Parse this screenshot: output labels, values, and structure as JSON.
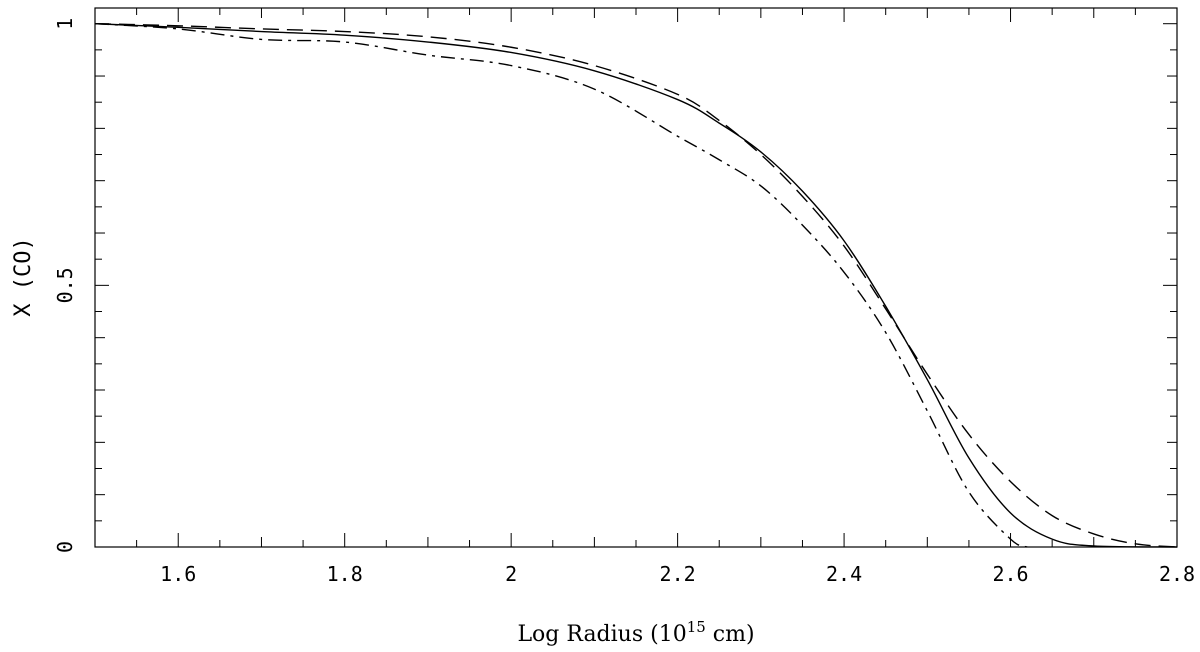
{
  "chart_data": {
    "type": "line",
    "title": "",
    "xlabel": {
      "prefix": "Log Radius (10",
      "superscript": "15",
      "suffix": " cm)"
    },
    "ylabel": "X (CO)",
    "xlim": [
      1.5,
      2.8
    ],
    "ylim": [
      0,
      1.03
    ],
    "x_ticks": [
      {
        "value": 1.6,
        "label": "1.6"
      },
      {
        "value": 1.8,
        "label": "1.8"
      },
      {
        "value": 2.0,
        "label": "2"
      },
      {
        "value": 2.2,
        "label": "2.2"
      },
      {
        "value": 2.4,
        "label": "2.4"
      },
      {
        "value": 2.6,
        "label": "2.6"
      },
      {
        "value": 2.8,
        "label": "2.8"
      }
    ],
    "y_ticks": [
      {
        "value": 0,
        "label": "0"
      },
      {
        "value": 0.5,
        "label": "0.5"
      },
      {
        "value": 1,
        "label": "1"
      }
    ],
    "grid": false,
    "legend": "none",
    "series": [
      {
        "style": "solid",
        "points": [
          [
            1.5,
            1.0
          ],
          [
            1.6,
            0.993
          ],
          [
            1.7,
            0.985
          ],
          [
            1.8,
            0.978
          ],
          [
            1.9,
            0.965
          ],
          [
            2.0,
            0.945
          ],
          [
            2.1,
            0.91
          ],
          [
            2.2,
            0.855
          ],
          [
            2.25,
            0.81
          ],
          [
            2.3,
            0.755
          ],
          [
            2.35,
            0.68
          ],
          [
            2.4,
            0.585
          ],
          [
            2.45,
            0.46
          ],
          [
            2.5,
            0.32
          ],
          [
            2.55,
            0.17
          ],
          [
            2.6,
            0.065
          ],
          [
            2.65,
            0.015
          ],
          [
            2.7,
            0.002
          ],
          [
            2.8,
            0.0
          ]
        ]
      },
      {
        "style": "dashed",
        "points": [
          [
            1.5,
            1.0
          ],
          [
            1.6,
            0.996
          ],
          [
            1.7,
            0.99
          ],
          [
            1.8,
            0.985
          ],
          [
            1.9,
            0.975
          ],
          [
            2.0,
            0.955
          ],
          [
            2.1,
            0.92
          ],
          [
            2.2,
            0.865
          ],
          [
            2.25,
            0.815
          ],
          [
            2.3,
            0.75
          ],
          [
            2.35,
            0.67
          ],
          [
            2.4,
            0.575
          ],
          [
            2.45,
            0.455
          ],
          [
            2.5,
            0.33
          ],
          [
            2.55,
            0.215
          ],
          [
            2.6,
            0.125
          ],
          [
            2.65,
            0.06
          ],
          [
            2.7,
            0.025
          ],
          [
            2.75,
            0.006
          ],
          [
            2.8,
            0.0
          ]
        ]
      },
      {
        "style": "dash-dot",
        "points": [
          [
            1.5,
            1.0
          ],
          [
            1.6,
            0.99
          ],
          [
            1.7,
            0.97
          ],
          [
            1.8,
            0.965
          ],
          [
            1.9,
            0.94
          ],
          [
            2.0,
            0.92
          ],
          [
            2.1,
            0.875
          ],
          [
            2.2,
            0.785
          ],
          [
            2.25,
            0.74
          ],
          [
            2.3,
            0.69
          ],
          [
            2.35,
            0.615
          ],
          [
            2.4,
            0.525
          ],
          [
            2.45,
            0.41
          ],
          [
            2.5,
            0.26
          ],
          [
            2.55,
            0.105
          ],
          [
            2.6,
            0.015
          ],
          [
            2.62,
            0.0
          ]
        ]
      }
    ]
  }
}
